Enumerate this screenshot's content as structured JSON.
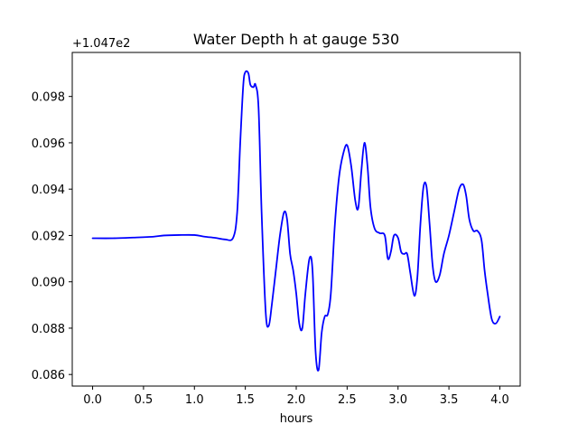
{
  "chart_data": {
    "type": "line",
    "title": "Water Depth h at gauge 530",
    "xlabel": "hours",
    "ylabel": "",
    "y_offset_label": "+1.047e2",
    "xlim": [
      -0.2,
      4.2
    ],
    "ylim": [
      0.0855,
      0.0999
    ],
    "xticks": [
      0.0,
      0.5,
      1.0,
      1.5,
      2.0,
      2.5,
      3.0,
      3.5,
      4.0
    ],
    "xtick_labels": [
      "0.0",
      "0.5",
      "1.0",
      "1.5",
      "2.0",
      "2.5",
      "3.0",
      "3.5",
      "4.0"
    ],
    "yticks": [
      0.086,
      0.088,
      0.09,
      0.092,
      0.094,
      0.096,
      0.098
    ],
    "ytick_labels": [
      "0.086",
      "0.088",
      "0.090",
      "0.092",
      "0.094",
      "0.096",
      "0.098"
    ],
    "grid": false,
    "line_color": "#0000ff",
    "series": [
      {
        "x": [
          0.0,
          0.2,
          0.4,
          0.6,
          0.7,
          0.85,
          1.0,
          1.1,
          1.2,
          1.3,
          1.38,
          1.42,
          1.45,
          1.48,
          1.5,
          1.53,
          1.55,
          1.58,
          1.6,
          1.63,
          1.66,
          1.7,
          1.73,
          1.76,
          1.8,
          1.84,
          1.88,
          1.91,
          1.94,
          1.97,
          2.0,
          2.03,
          2.06,
          2.09,
          2.13,
          2.16,
          2.19,
          2.22,
          2.25,
          2.28,
          2.31,
          2.34,
          2.38,
          2.42,
          2.46,
          2.5,
          2.54,
          2.58,
          2.61,
          2.64,
          2.67,
          2.7,
          2.73,
          2.77,
          2.82,
          2.87,
          2.9,
          2.93,
          2.96,
          3.0,
          3.03,
          3.06,
          3.09,
          3.12,
          3.16,
          3.19,
          3.22,
          3.25,
          3.28,
          3.31,
          3.34,
          3.37,
          3.41,
          3.45,
          3.5,
          3.55,
          3.6,
          3.64,
          3.67,
          3.7,
          3.74,
          3.78,
          3.82,
          3.85,
          3.88,
          3.92,
          3.96,
          4.0
        ],
        "y": [
          0.09188,
          0.09188,
          0.09191,
          0.09195,
          0.092,
          0.09202,
          0.09202,
          0.09195,
          0.0919,
          0.09183,
          0.0919,
          0.093,
          0.096,
          0.0985,
          0.09905,
          0.099,
          0.0985,
          0.0984,
          0.0985,
          0.0975,
          0.093,
          0.0887,
          0.0881,
          0.089,
          0.0905,
          0.092,
          0.093,
          0.0927,
          0.0912,
          0.0905,
          0.0895,
          0.0882,
          0.088,
          0.0895,
          0.091,
          0.0905,
          0.087,
          0.0862,
          0.0878,
          0.0885,
          0.0886,
          0.0895,
          0.0925,
          0.0945,
          0.0955,
          0.0959,
          0.095,
          0.0935,
          0.0932,
          0.0948,
          0.096,
          0.095,
          0.0932,
          0.0923,
          0.0921,
          0.092,
          0.091,
          0.0913,
          0.092,
          0.0919,
          0.0913,
          0.0912,
          0.0912,
          0.0904,
          0.0894,
          0.0902,
          0.0925,
          0.0941,
          0.0941,
          0.0925,
          0.0907,
          0.09,
          0.0903,
          0.0912,
          0.092,
          0.093,
          0.094,
          0.0942,
          0.0937,
          0.0927,
          0.0922,
          0.0922,
          0.0918,
          0.0905,
          0.0895,
          0.0884,
          0.0882,
          0.0885
        ]
      }
    ]
  }
}
